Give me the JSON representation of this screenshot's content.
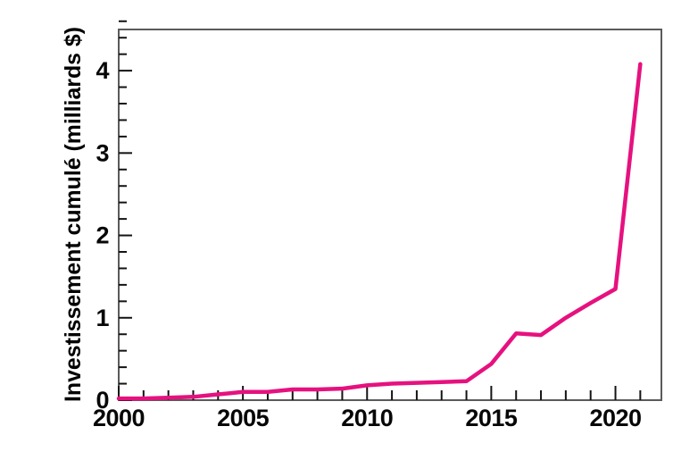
{
  "figure": {
    "background": "#ffffff"
  },
  "chart_data": {
    "type": "line",
    "title": "",
    "xlabel": "",
    "ylabel": "Investissement cumulé (milliards $)",
    "x": [
      2000,
      2001,
      2002,
      2003,
      2004,
      2005,
      2006,
      2007,
      2008,
      2009,
      2010,
      2011,
      2012,
      2013,
      2014,
      2015,
      2016,
      2017,
      2018,
      2019,
      2020,
      2021
    ],
    "series": [
      {
        "name": "Investissement cumulé (milliards $)",
        "color": "#E6117F",
        "line_width": 4.5,
        "values": [
          0.02,
          0.02,
          0.03,
          0.04,
          0.07,
          0.1,
          0.1,
          0.13,
          0.13,
          0.14,
          0.18,
          0.2,
          0.21,
          0.22,
          0.23,
          0.44,
          0.81,
          0.79,
          1.0,
          1.18,
          1.35,
          4.08
        ]
      }
    ],
    "xlim": [
      2000,
      2021.85
    ],
    "ylim": [
      0,
      4.5
    ],
    "x_major_ticks": [
      2000,
      2005,
      2010,
      2015,
      2020
    ],
    "x_minor_tick_step": 1,
    "y_major_ticks": [
      0,
      1,
      2,
      3,
      4
    ],
    "y_minor_tick_step": 0.2,
    "tick_style": "inside",
    "grid": false,
    "legend_position": "none",
    "frame": true,
    "axis_color": "#5a5a5a",
    "tick_color": "#141414",
    "label_color": "#000000"
  }
}
